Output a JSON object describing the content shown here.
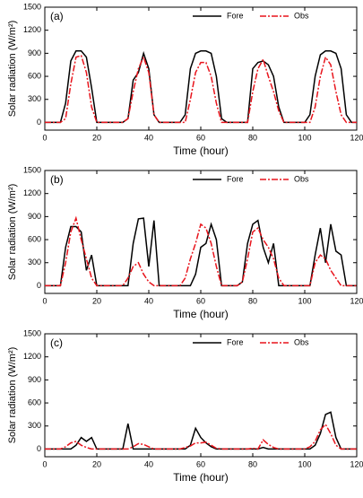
{
  "chart_data": [
    {
      "type": "line",
      "annotation": "(a)",
      "xlabel": "Time (hour)",
      "ylabel": "Solar radiation (W/m²)",
      "xlim": [
        0,
        120
      ],
      "xticks": [
        0,
        20,
        40,
        60,
        80,
        100,
        120
      ],
      "ylim": [
        -100,
        1500
      ],
      "yticks": [
        0,
        300,
        600,
        900,
        1200,
        1500
      ],
      "legend": "top-right",
      "x": [
        0,
        2,
        4,
        6,
        8,
        10,
        12,
        14,
        16,
        18,
        20,
        22,
        24,
        26,
        28,
        30,
        32,
        34,
        36,
        38,
        40,
        42,
        44,
        46,
        48,
        50,
        52,
        54,
        56,
        58,
        60,
        62,
        64,
        66,
        68,
        70,
        72,
        74,
        76,
        78,
        80,
        82,
        84,
        86,
        88,
        90,
        92,
        94,
        96,
        98,
        100,
        102,
        104,
        106,
        108,
        110,
        112,
        114,
        116,
        118,
        120
      ],
      "series": [
        {
          "name": "Fore",
          "color": "#000000",
          "dash": "solid",
          "values": [
            0,
            0,
            0,
            0,
            250,
            800,
            930,
            930,
            850,
            450,
            0,
            0,
            0,
            0,
            0,
            0,
            50,
            550,
            650,
            900,
            700,
            100,
            0,
            0,
            0,
            0,
            0,
            100,
            700,
            900,
            930,
            930,
            900,
            600,
            50,
            0,
            0,
            0,
            0,
            0,
            700,
            780,
            800,
            750,
            600,
            200,
            0,
            0,
            0,
            0,
            0,
            100,
            600,
            880,
            930,
            930,
            900,
            700,
            100,
            0,
            0
          ]
        },
        {
          "name": "Obs",
          "color": "#e8141c",
          "dash": "dashdot",
          "values": [
            0,
            0,
            0,
            0,
            50,
            500,
            850,
            870,
            650,
            200,
            0,
            0,
            0,
            0,
            0,
            0,
            50,
            400,
            700,
            850,
            650,
            100,
            0,
            0,
            0,
            0,
            0,
            0,
            300,
            650,
            780,
            780,
            600,
            250,
            0,
            0,
            0,
            0,
            0,
            0,
            400,
            700,
            820,
            600,
            400,
            150,
            0,
            0,
            0,
            0,
            0,
            0,
            200,
            600,
            850,
            750,
            400,
            100,
            0,
            0,
            0
          ]
        }
      ]
    },
    {
      "type": "line",
      "annotation": "(b)",
      "xlabel": "Time (hour)",
      "ylabel": "Solar radiation (W/m²)",
      "xlim": [
        0,
        120
      ],
      "xticks": [
        0,
        20,
        40,
        60,
        80,
        100,
        120
      ],
      "ylim": [
        -100,
        1500
      ],
      "yticks": [
        0,
        300,
        600,
        900,
        1200,
        1500
      ],
      "legend": "top-right",
      "x": [
        0,
        2,
        4,
        6,
        8,
        10,
        12,
        14,
        16,
        18,
        20,
        22,
        24,
        26,
        28,
        30,
        32,
        34,
        36,
        38,
        40,
        42,
        44,
        46,
        48,
        50,
        52,
        54,
        56,
        58,
        60,
        62,
        64,
        66,
        68,
        70,
        72,
        74,
        76,
        78,
        80,
        82,
        84,
        86,
        88,
        90,
        92,
        94,
        96,
        98,
        100,
        102,
        104,
        106,
        108,
        110,
        112,
        114,
        116,
        118,
        120
      ],
      "series": [
        {
          "name": "Fore",
          "color": "#000000",
          "dash": "solid",
          "values": [
            0,
            0,
            0,
            0,
            500,
            770,
            770,
            700,
            200,
            400,
            0,
            0,
            0,
            0,
            0,
            0,
            0,
            550,
            870,
            880,
            250,
            850,
            0,
            0,
            0,
            0,
            0,
            0,
            0,
            150,
            500,
            550,
            800,
            600,
            0,
            0,
            0,
            0,
            50,
            550,
            800,
            850,
            500,
            300,
            550,
            0,
            0,
            0,
            0,
            0,
            0,
            0,
            400,
            750,
            300,
            800,
            450,
            400,
            0,
            0,
            0
          ]
        },
        {
          "name": "Obs",
          "color": "#e8141c",
          "dash": "dashdot",
          "values": [
            0,
            0,
            0,
            0,
            300,
            700,
            880,
            600,
            350,
            100,
            0,
            0,
            0,
            0,
            0,
            0,
            100,
            250,
            300,
            150,
            50,
            0,
            0,
            0,
            0,
            0,
            0,
            100,
            350,
            550,
            800,
            750,
            550,
            250,
            0,
            0,
            0,
            0,
            50,
            350,
            700,
            750,
            600,
            500,
            350,
            100,
            0,
            0,
            0,
            0,
            0,
            0,
            300,
            400,
            350,
            200,
            100,
            0,
            0,
            0,
            0
          ]
        }
      ]
    },
    {
      "type": "line",
      "annotation": "(c)",
      "xlabel": "Time (hour)",
      "ylabel": "Solar radiation (W/m²)",
      "xlim": [
        0,
        120
      ],
      "xticks": [
        0,
        20,
        40,
        60,
        80,
        100,
        120
      ],
      "ylim": [
        -100,
        1500
      ],
      "yticks": [
        0,
        300,
        600,
        900,
        1200,
        1500
      ],
      "legend": "top-right",
      "x": [
        0,
        2,
        4,
        6,
        8,
        10,
        12,
        14,
        16,
        18,
        20,
        22,
        24,
        26,
        28,
        30,
        32,
        34,
        36,
        38,
        40,
        42,
        44,
        46,
        48,
        50,
        52,
        54,
        56,
        58,
        60,
        62,
        64,
        66,
        68,
        70,
        72,
        74,
        76,
        78,
        80,
        82,
        84,
        86,
        88,
        90,
        92,
        94,
        96,
        98,
        100,
        102,
        104,
        106,
        108,
        110,
        112,
        114,
        116,
        118,
        120
      ],
      "series": [
        {
          "name": "Fore",
          "color": "#000000",
          "dash": "solid",
          "values": [
            0,
            0,
            0,
            0,
            0,
            0,
            50,
            150,
            100,
            150,
            0,
            0,
            0,
            0,
            0,
            0,
            330,
            0,
            0,
            0,
            0,
            0,
            0,
            0,
            0,
            0,
            0,
            0,
            50,
            270,
            150,
            80,
            30,
            0,
            0,
            0,
            0,
            0,
            0,
            0,
            0,
            0,
            20,
            0,
            0,
            0,
            0,
            0,
            0,
            0,
            0,
            0,
            50,
            200,
            450,
            480,
            150,
            0,
            0,
            0,
            0
          ]
        },
        {
          "name": "Obs",
          "color": "#e8141c",
          "dash": "dashdot",
          "values": [
            0,
            0,
            0,
            0,
            30,
            80,
            100,
            50,
            20,
            0,
            0,
            0,
            0,
            0,
            0,
            0,
            0,
            30,
            70,
            60,
            30,
            0,
            0,
            0,
            0,
            0,
            0,
            20,
            40,
            80,
            80,
            90,
            50,
            10,
            0,
            0,
            0,
            0,
            0,
            0,
            10,
            0,
            120,
            60,
            20,
            0,
            0,
            0,
            0,
            0,
            0,
            30,
            100,
            250,
            320,
            200,
            50,
            0,
            0,
            0,
            0
          ]
        }
      ]
    }
  ]
}
